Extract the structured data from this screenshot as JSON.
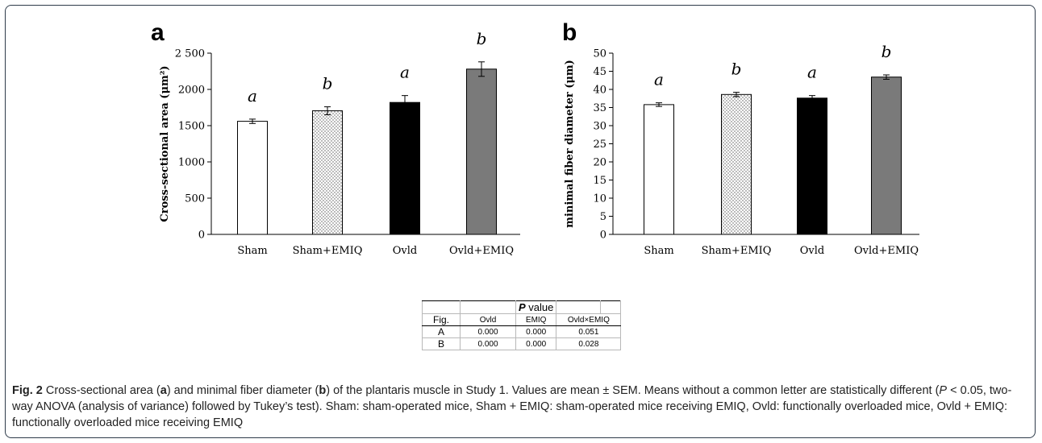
{
  "figure": {
    "panel_a_letter": "a",
    "panel_b_letter": "b"
  },
  "chart_data": [
    {
      "type": "bar",
      "panel": "a",
      "ylabel": "Cross-sectional area (μm²)",
      "xlabel": "",
      "categories": [
        "Sham",
        "Sham+EMIQ",
        "Ovld",
        "Ovld+EMIQ"
      ],
      "values": [
        1560,
        1705,
        1820,
        2280
      ],
      "errors": [
        30,
        55,
        95,
        100
      ],
      "significance_letters": [
        "a",
        "b",
        "a",
        "b"
      ],
      "bar_fills": [
        "white",
        "dotted",
        "#000000",
        "#7a7a7a"
      ],
      "ylim": [
        0,
        2500
      ],
      "yticks": [
        0,
        500,
        1000,
        1500,
        2000,
        2500
      ],
      "ytick_labels": [
        "0",
        "500",
        "1000",
        "1500",
        "2000",
        "2 500"
      ],
      "grid": false
    },
    {
      "type": "bar",
      "panel": "b",
      "ylabel": "minimal fiber diameter (μm)",
      "xlabel": "",
      "categories": [
        "Sham",
        "Sham+EMIQ",
        "Ovld",
        "Ovld+EMIQ"
      ],
      "values": [
        35.8,
        38.6,
        37.6,
        43.4
      ],
      "errors": [
        0.5,
        0.6,
        0.7,
        0.6
      ],
      "significance_letters": [
        "a",
        "b",
        "a",
        "b"
      ],
      "bar_fills": [
        "white",
        "dotted",
        "#000000",
        "#7a7a7a"
      ],
      "ylim": [
        0,
        50
      ],
      "yticks": [
        0,
        5,
        10,
        15,
        20,
        25,
        30,
        35,
        40,
        45,
        50
      ],
      "ytick_labels": [
        "0",
        "5",
        "10",
        "15",
        "20",
        "25",
        "30",
        "35",
        "40",
        "45",
        "50"
      ],
      "grid": false
    }
  ],
  "ptable": {
    "title_p": "P",
    "title_rest": " value",
    "header": [
      "Fig.",
      "Ovld",
      "EMIQ",
      "Ovld×EMIQ"
    ],
    "rows": [
      [
        "A",
        "0.000",
        "0.000",
        "0.051"
      ],
      [
        "B",
        "0.000",
        "0.000",
        "0.028"
      ]
    ]
  },
  "caption": {
    "fig_label": "Fig. 2",
    "t1": " Cross-sectional area (",
    "a": "a",
    "t2": ") and minimal fiber diameter (",
    "b": "b",
    "t3": ") of the plantaris muscle in Study 1. Values are mean ± SEM. Means without a common letter are statistically different (",
    "p": "P",
    "t4": " < 0.05, two-way ANOVA (analysis of variance) followed by Tukey’s test). Sham: sham-operated mice, Sham + EMIQ: sham-operated mice receiving EMIQ, Ovld: functionally overloaded mice, Ovld + EMIQ: functionally overloaded mice receiving EMIQ"
  }
}
